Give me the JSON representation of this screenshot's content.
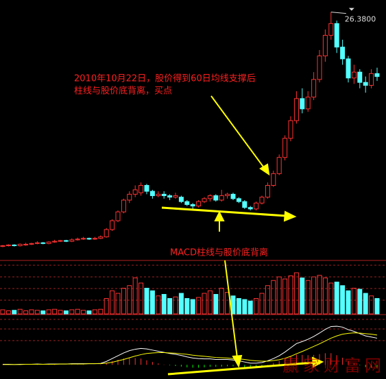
{
  "annotations": [
    "2010年10月22日，股价得到60日均线支撑后",
    "柱线与股价底背离，买点",
    "MACD柱线与股价底背离"
  ],
  "watermark": "赢家财富网",
  "chart_data": [
    {
      "type": "candlestick",
      "ylim": [
        9.5,
        27.2
      ],
      "up_color": "#ff3232",
      "down_color": "#54ffff",
      "max_label": "26.3800",
      "open": [
        10.45,
        10.5,
        10.55,
        10.5,
        10.55,
        10.6,
        10.65,
        10.7,
        10.65,
        10.75,
        10.8,
        10.85,
        10.8,
        10.9,
        10.95,
        11.0,
        10.95,
        11.0,
        11.1,
        11.6,
        12.2,
        12.8,
        13.6,
        14.0,
        14.1,
        14.6,
        14.2,
        13.9,
        14.0,
        13.9,
        13.8,
        13.8,
        13.5,
        13.3,
        13.2,
        13.5,
        13.7,
        13.9,
        13.6,
        13.9,
        14.0,
        13.7,
        13.5,
        13.1,
        13.0,
        13.4,
        13.8,
        14.6,
        15.4,
        16.5,
        17.8,
        19.0,
        20.5,
        19.8,
        20.6,
        21.8,
        23.4,
        24.8,
        25.6,
        24.0,
        23.2,
        21.9,
        22.3,
        21.6,
        21.4,
        22.2
      ],
      "close": [
        10.5,
        10.55,
        10.5,
        10.6,
        10.6,
        10.65,
        10.7,
        10.65,
        10.75,
        10.8,
        10.85,
        10.8,
        10.9,
        10.95,
        11.0,
        10.95,
        11.0,
        11.1,
        11.6,
        12.2,
        12.8,
        13.6,
        14.0,
        14.3,
        14.6,
        14.2,
        13.9,
        14.0,
        13.9,
        13.8,
        13.9,
        13.5,
        13.3,
        13.2,
        13.5,
        13.7,
        13.9,
        13.6,
        13.9,
        14.0,
        13.7,
        13.5,
        13.1,
        13.0,
        13.4,
        13.8,
        14.6,
        15.4,
        16.5,
        17.8,
        19.0,
        20.5,
        19.8,
        20.6,
        21.8,
        23.4,
        24.8,
        25.6,
        24.0,
        23.2,
        21.9,
        22.3,
        21.6,
        21.4,
        22.2,
        22.0
      ],
      "high": [
        10.55,
        10.6,
        10.6,
        10.65,
        10.7,
        10.7,
        10.8,
        10.75,
        10.8,
        10.9,
        10.9,
        10.9,
        11.0,
        11.05,
        11.1,
        11.05,
        11.1,
        11.2,
        11.7,
        12.3,
        12.9,
        13.7,
        14.2,
        14.6,
        14.8,
        14.7,
        14.3,
        14.2,
        14.2,
        14.0,
        14.1,
        13.9,
        13.6,
        13.4,
        13.6,
        13.8,
        14.0,
        14.0,
        14.3,
        14.1,
        14.1,
        13.8,
        13.6,
        13.2,
        13.5,
        13.9,
        14.8,
        15.6,
        16.7,
        18.0,
        19.3,
        21.0,
        21.2,
        21.0,
        22.3,
        23.8,
        25.2,
        26.38,
        25.8,
        24.5,
        23.4,
        22.8,
        22.5,
        22.0,
        22.5,
        22.6
      ],
      "low": [
        10.4,
        10.45,
        10.45,
        10.45,
        10.5,
        10.55,
        10.6,
        10.6,
        10.6,
        10.7,
        10.75,
        10.75,
        10.75,
        10.85,
        10.9,
        10.9,
        10.9,
        10.95,
        11.05,
        11.5,
        12.1,
        12.7,
        13.4,
        13.8,
        13.9,
        14.0,
        13.7,
        13.8,
        13.7,
        13.6,
        13.7,
        13.4,
        13.2,
        13.0,
        13.1,
        13.4,
        13.5,
        13.5,
        13.5,
        13.7,
        13.6,
        13.4,
        13.0,
        12.9,
        12.9,
        13.3,
        13.7,
        14.5,
        15.3,
        16.3,
        17.6,
        18.8,
        19.5,
        19.6,
        20.4,
        21.6,
        23.0,
        24.5,
        23.6,
        22.8,
        21.6,
        21.5,
        21.2,
        20.9,
        21.2,
        21.7
      ]
    },
    {
      "type": "bar",
      "ylim": [
        0,
        100
      ],
      "values": [
        8,
        6,
        7,
        9,
        6,
        8,
        7,
        6,
        8,
        9,
        7,
        6,
        8,
        9,
        7,
        6,
        8,
        9,
        30,
        45,
        40,
        50,
        55,
        70,
        60,
        50,
        45,
        35,
        38,
        30,
        33,
        40,
        30,
        28,
        32,
        40,
        45,
        38,
        50,
        42,
        35,
        30,
        28,
        25,
        30,
        40,
        55,
        65,
        72,
        68,
        74,
        80,
        70,
        65,
        72,
        75,
        70,
        60,
        62,
        55,
        45,
        50,
        48,
        40,
        35,
        30
      ]
    },
    {
      "type": "macd",
      "ylim": [
        -0.5,
        1.7
      ],
      "up_color": "#ff3232",
      "down_color": "#00ff00",
      "histogram": [
        0.01,
        0.01,
        0,
        0.01,
        0,
        0,
        0.01,
        0,
        0.01,
        0.01,
        0,
        0,
        0.01,
        0.01,
        0.01,
        0,
        0,
        0.01,
        0.06,
        0.13,
        0.18,
        0.23,
        0.25,
        0.24,
        0.22,
        0.16,
        0.1,
        0.05,
        0.01,
        -0.02,
        -0.04,
        -0.06,
        -0.09,
        -0.1,
        -0.1,
        -0.09,
        -0.07,
        -0.07,
        -0.06,
        -0.05,
        -0.05,
        -0.07,
        -0.09,
        -0.1,
        -0.08,
        -0.05,
        0.01,
        0.07,
        0.14,
        0.22,
        0.3,
        0.36,
        0.35,
        0.34,
        0.35,
        0.38,
        0.41,
        0.41,
        0.34,
        0.25,
        0.13,
        0.05,
        -0.02,
        -0.08,
        -0.1,
        -0.11
      ],
      "series": [
        {
          "color": "#ffffff",
          "values": [
            0.02,
            0.02,
            0.01,
            0.02,
            0.02,
            0.02,
            0.03,
            0.02,
            0.03,
            0.03,
            0.03,
            0.03,
            0.04,
            0.04,
            0.04,
            0.04,
            0.04,
            0.05,
            0.12,
            0.22,
            0.32,
            0.42,
            0.5,
            0.55,
            0.58,
            0.56,
            0.52,
            0.48,
            0.44,
            0.4,
            0.37,
            0.33,
            0.28,
            0.24,
            0.22,
            0.21,
            0.21,
            0.19,
            0.19,
            0.19,
            0.17,
            0.14,
            0.1,
            0.06,
            0.06,
            0.08,
            0.14,
            0.22,
            0.32,
            0.45,
            0.6,
            0.75,
            0.82,
            0.9,
            1.0,
            1.12,
            1.25,
            1.35,
            1.36,
            1.33,
            1.24,
            1.18,
            1.1,
            1.02,
            0.98,
            0.94
          ]
        },
        {
          "color": "#ffff00",
          "values": [
            0.01,
            0.01,
            0.01,
            0.01,
            0.02,
            0.02,
            0.02,
            0.02,
            0.02,
            0.02,
            0.03,
            0.03,
            0.03,
            0.03,
            0.03,
            0.04,
            0.04,
            0.04,
            0.06,
            0.09,
            0.14,
            0.19,
            0.25,
            0.31,
            0.36,
            0.4,
            0.42,
            0.43,
            0.43,
            0.42,
            0.41,
            0.39,
            0.37,
            0.34,
            0.32,
            0.3,
            0.28,
            0.26,
            0.25,
            0.24,
            0.22,
            0.21,
            0.19,
            0.16,
            0.14,
            0.13,
            0.13,
            0.15,
            0.18,
            0.23,
            0.3,
            0.39,
            0.47,
            0.56,
            0.65,
            0.74,
            0.84,
            0.94,
            1.02,
            1.08,
            1.11,
            1.13,
            1.12,
            1.1,
            1.08,
            1.05
          ]
        }
      ]
    }
  ]
}
